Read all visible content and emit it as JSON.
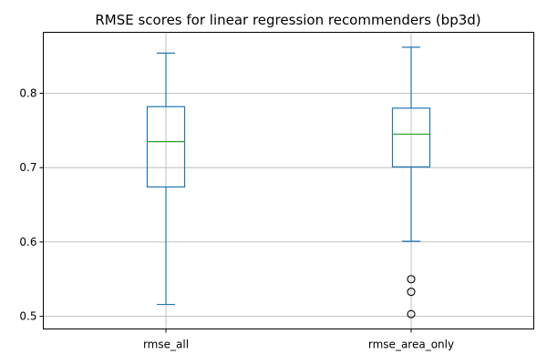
{
  "chart_data": {
    "type": "box",
    "title": "RMSE scores for linear regression recommenders (bp3d)",
    "xlabel": "",
    "ylabel": "",
    "categories": [
      "rmse_all",
      "rmse_area_only"
    ],
    "boxes": [
      {
        "name": "rmse_all",
        "whisker_low": 0.516,
        "q1": 0.674,
        "median": 0.735,
        "q3": 0.782,
        "whisker_high": 0.854,
        "outliers": []
      },
      {
        "name": "rmse_area_only",
        "whisker_low": 0.601,
        "q1": 0.701,
        "median": 0.745,
        "q3": 0.78,
        "whisker_high": 0.862,
        "outliers": [
          0.55,
          0.533,
          0.503
        ]
      }
    ],
    "ylim": [
      0.483,
      0.882
    ],
    "yticks": [
      "0.5",
      "0.6",
      "0.7",
      "0.8"
    ],
    "ytick_values": [
      0.5,
      0.6,
      0.7,
      0.8
    ],
    "grid": true,
    "colors": {
      "box": "#1f77b4",
      "median": "#2ca02c",
      "grid": "#b0b0b0",
      "outlier": "#000000"
    }
  }
}
